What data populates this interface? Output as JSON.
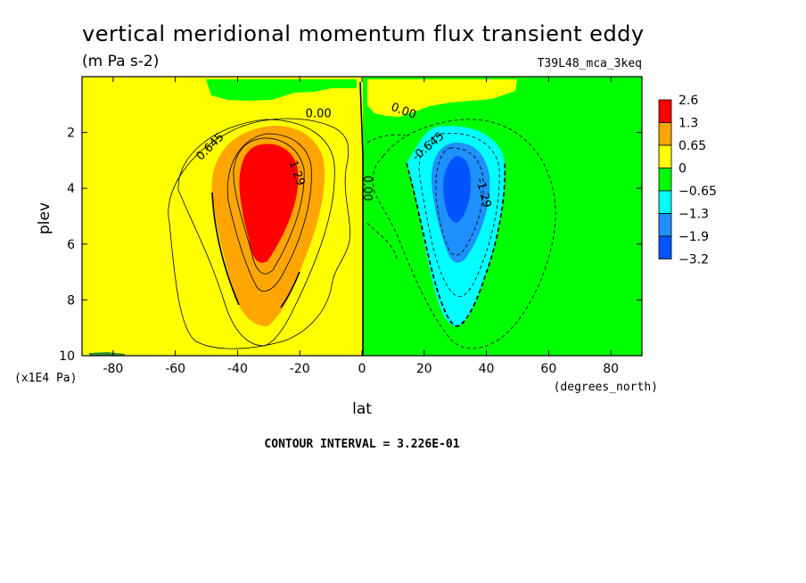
{
  "title": "vertical meridional momentum flux transient eddy",
  "units": "(m Pa s-2)",
  "run_label": "T39L48_mca_3keq",
  "contour_interval": "CONTOUR INTERVAL = 3.226E-01",
  "colors": {
    "red": "#ff0000",
    "orange": "#ffa500",
    "yellow": "#ffff00",
    "green": "#00ff00",
    "cyan": "#00ffff",
    "midblue": "#1e90ff",
    "blue": "#0055ff"
  },
  "chart_data": {
    "type": "contour",
    "xlabel": "lat",
    "xunits": "(degrees_north)",
    "ylabel": "plev",
    "yunits": "(x1E4 Pa)",
    "xlim": [
      -90,
      90
    ],
    "ylim": [
      0,
      10
    ],
    "y_inverted": true,
    "xticks": [
      -80,
      -60,
      -40,
      -20,
      0,
      20,
      40,
      60,
      80
    ],
    "xtick_labels": [
      "-80",
      "-60",
      "-40",
      "-20",
      "0",
      "20",
      "40",
      "60",
      "80"
    ],
    "yticks": [
      2,
      4,
      6,
      8,
      10
    ],
    "ytick_labels": [
      "2",
      "4",
      "6",
      "8",
      "10"
    ],
    "colorbar": {
      "labels": [
        "2.6",
        "1.3",
        "0.65",
        "0",
        "−0.65",
        "−1.3",
        "−1.9",
        "−3.2"
      ],
      "colors": [
        "#ff0000",
        "#ffa500",
        "#ffff00",
        "#00ff00",
        "#00ffff",
        "#1e90ff",
        "#0055ff"
      ]
    },
    "contour_labels": [
      {
        "text": "0.00",
        "lat": -14,
        "plev": 1.45
      },
      {
        "text": "0.00",
        "lat": 13,
        "plev": 1.35
      },
      {
        "text": "0.00",
        "lat": 0.5,
        "plev": 4.0
      },
      {
        "text": "0.645",
        "lat": -48,
        "plev": 2.6
      },
      {
        "text": "1.29",
        "lat": -22,
        "plev": 3.5
      },
      {
        "text": "-0.645",
        "lat": 22,
        "plev": 2.6
      },
      {
        "text": "-1.29",
        "lat": 38,
        "plev": 4.2
      }
    ],
    "features": [
      {
        "name": "positive maximum",
        "lat": -30,
        "plev": 4.0,
        "max_value": 2.6
      },
      {
        "name": "negative minimum",
        "lat": 30,
        "plev": 4.0,
        "min_value": -3.2
      }
    ]
  }
}
